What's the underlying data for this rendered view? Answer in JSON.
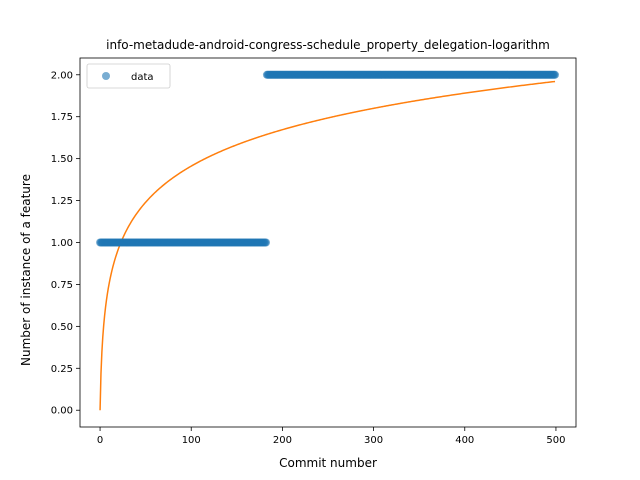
{
  "chart_data": {
    "type": "scatter",
    "title": "info-metadude-android-congress-schedule_property_delegation-logarithm",
    "xlabel": "Commit number",
    "ylabel": "Number of instance of a feature",
    "xlim": [
      -22,
      522
    ],
    "ylim": [
      -0.1,
      2.1
    ],
    "xticks": [
      0,
      100,
      200,
      300,
      400,
      500
    ],
    "yticks": [
      0.0,
      0.25,
      0.5,
      0.75,
      1.0,
      1.25,
      1.5,
      1.75,
      2.0
    ],
    "ytick_labels": [
      "0.00",
      "0.25",
      "0.50",
      "0.75",
      "1.00",
      "1.25",
      "1.50",
      "1.75",
      "2.00"
    ],
    "grid": false,
    "legend": {
      "placement": "upper-left",
      "entries": [
        "data"
      ]
    },
    "series": [
      {
        "name": "data",
        "kind": "scatter",
        "color": "#1f77b4",
        "segments": [
          {
            "x_start": 0,
            "x_end": 182,
            "y": 1.0
          },
          {
            "x_start": 183,
            "x_end": 499,
            "y": 2.0
          }
        ]
      },
      {
        "kind": "line",
        "color": "#ff7f0e",
        "model": "logarithmic",
        "x_start": 0,
        "x_end": 499,
        "points": [
          [
            0,
            0.0
          ],
          [
            1,
            0.21
          ],
          [
            2,
            0.34
          ],
          [
            5,
            0.56
          ],
          [
            10,
            0.73
          ],
          [
            20,
            0.91
          ],
          [
            30,
            1.02
          ],
          [
            50,
            1.16
          ],
          [
            75,
            1.29
          ],
          [
            100,
            1.38
          ],
          [
            150,
            1.52
          ],
          [
            200,
            1.62
          ],
          [
            250,
            1.7
          ],
          [
            300,
            1.77
          ],
          [
            350,
            1.83
          ],
          [
            400,
            1.88
          ],
          [
            450,
            1.92
          ],
          [
            499,
            1.96
          ]
        ]
      }
    ]
  }
}
